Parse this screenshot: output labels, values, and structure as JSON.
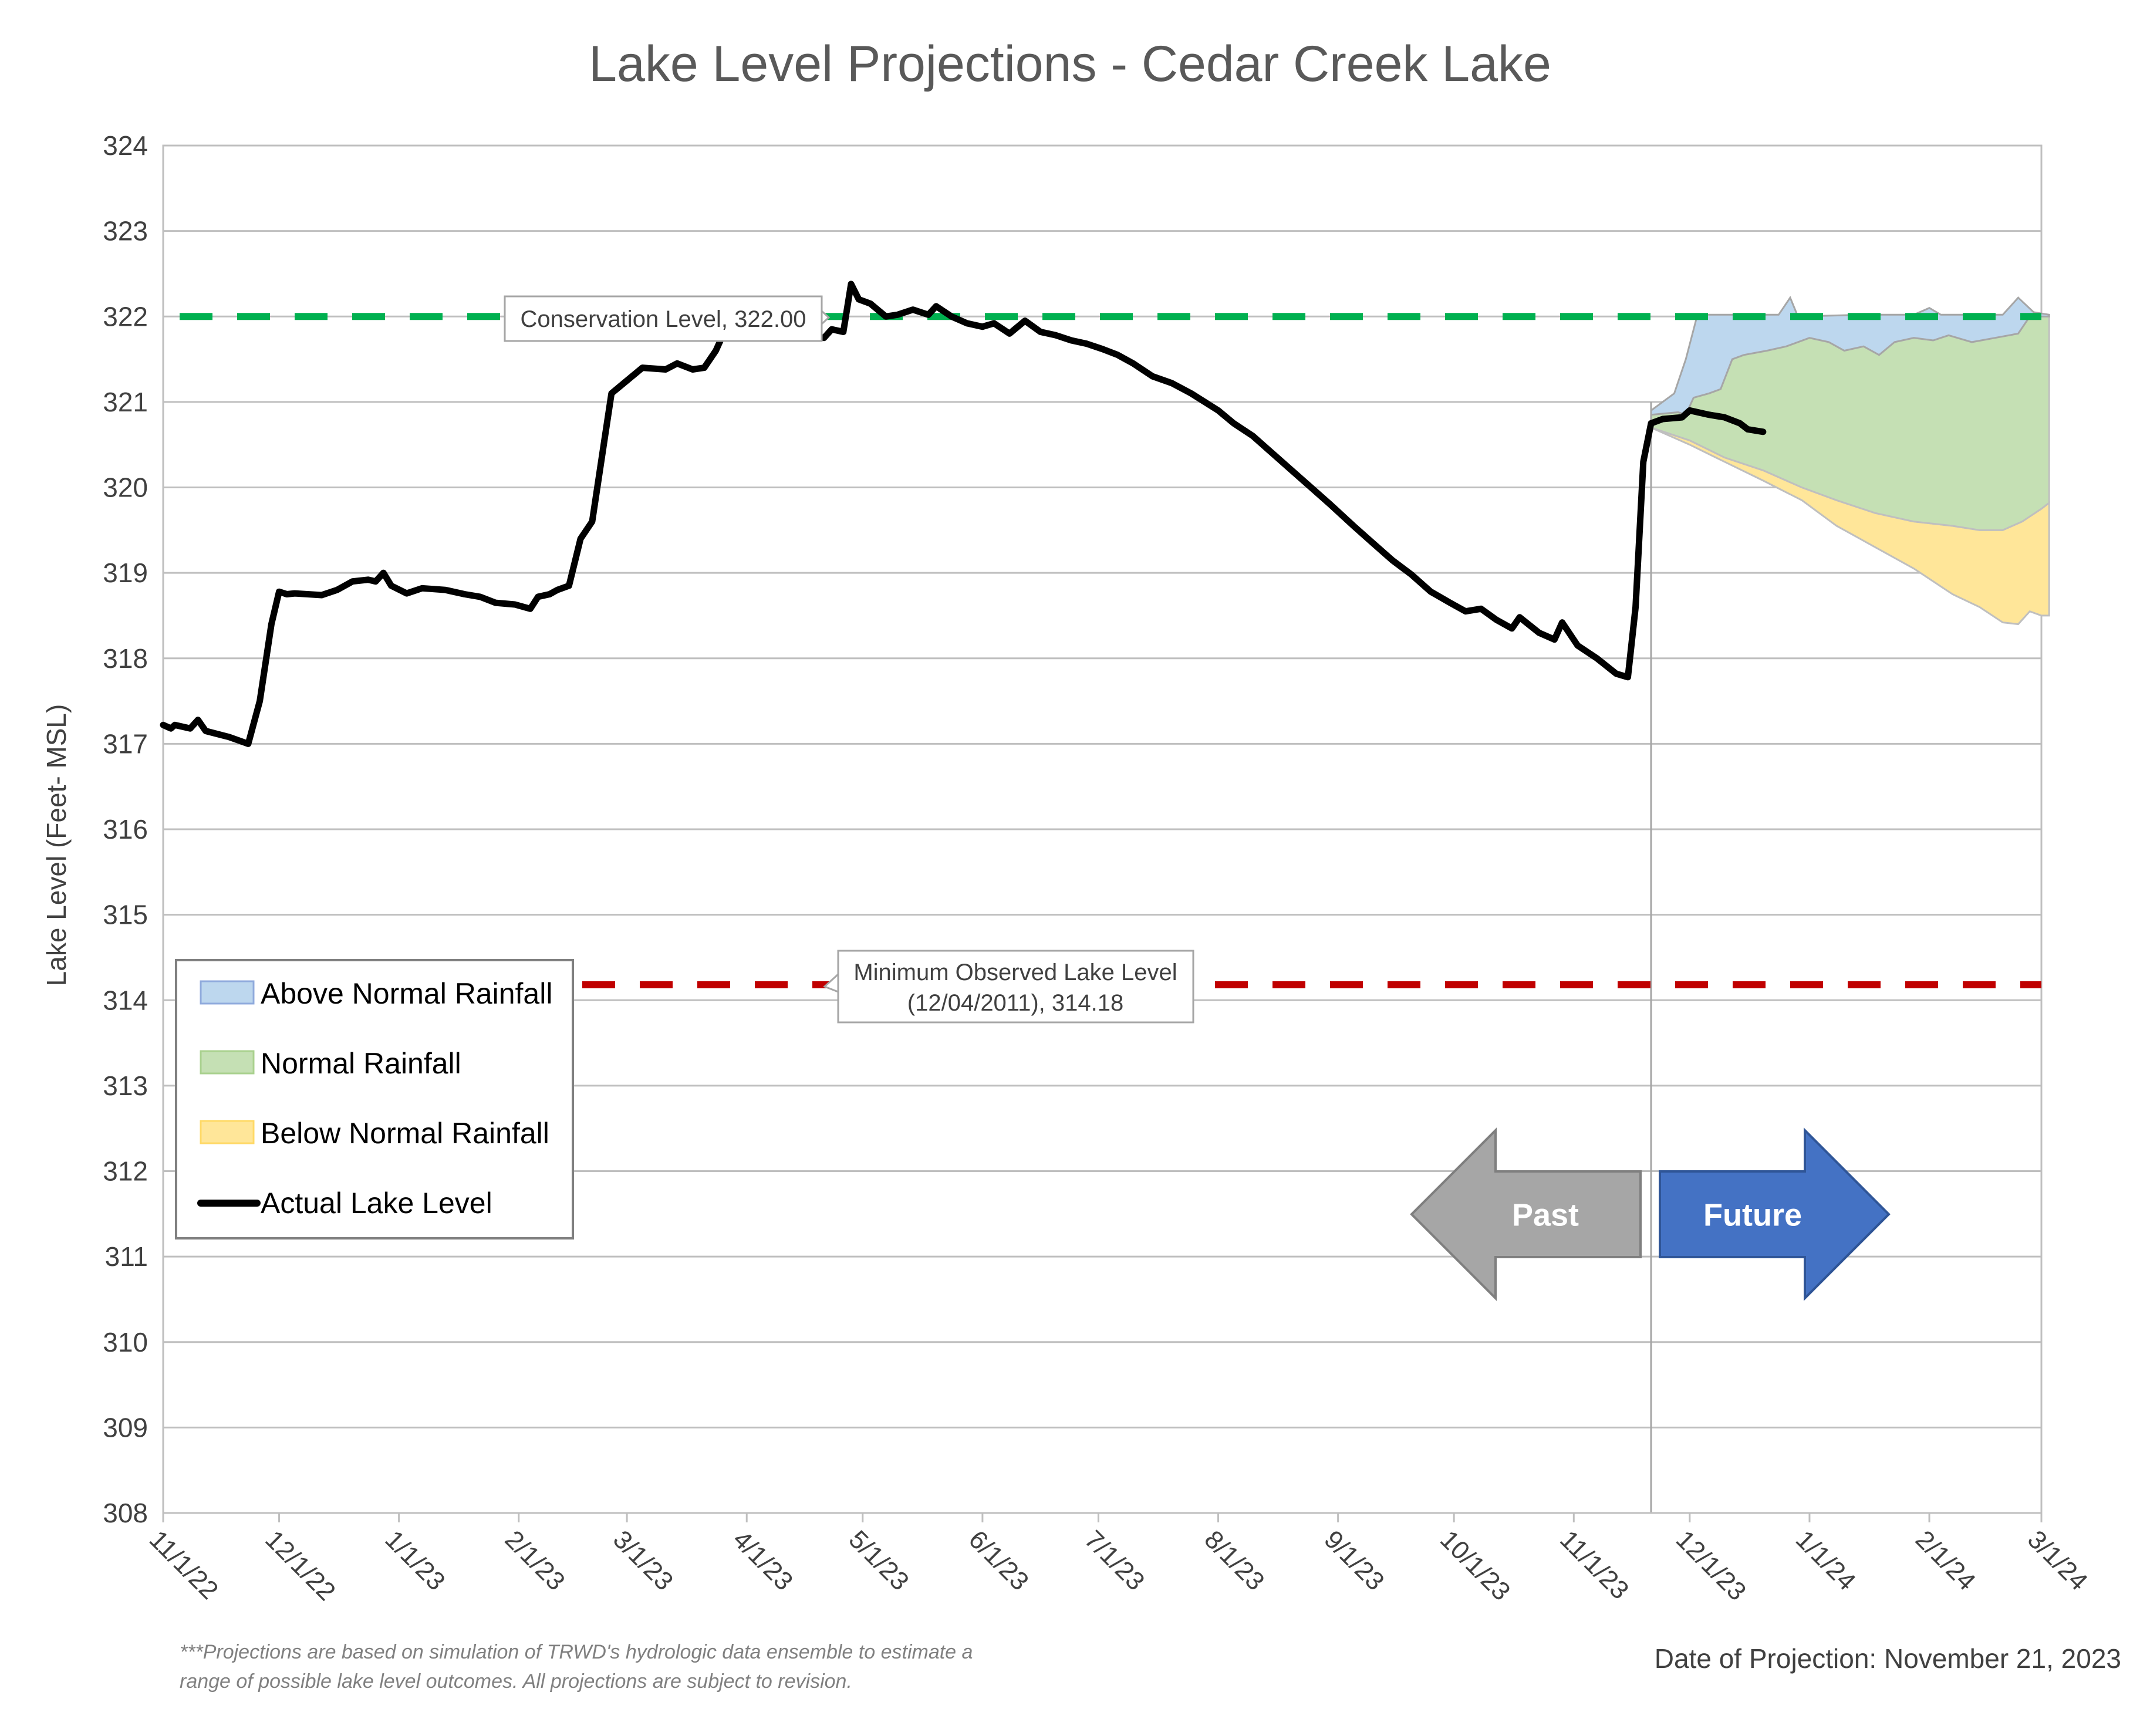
{
  "chart_data": {
    "type": "area",
    "title": "Lake Level Projections - Cedar Creek Lake",
    "ylabel": "Lake Level (Feet- MSL)",
    "xlabel": "",
    "ylim": [
      308,
      324
    ],
    "yticks": [
      308,
      309,
      310,
      311,
      312,
      313,
      314,
      315,
      316,
      317,
      318,
      319,
      320,
      321,
      322,
      323,
      324
    ],
    "xlim": [
      "2022-11-01",
      "2024-03-01"
    ],
    "xticks": [
      {
        "date": "2022-11-01",
        "label": "11/1/22"
      },
      {
        "date": "2022-12-01",
        "label": "12/1/22"
      },
      {
        "date": "2023-01-01",
        "label": "1/1/23"
      },
      {
        "date": "2023-02-01",
        "label": "2/1/23"
      },
      {
        "date": "2023-03-01",
        "label": "3/1/23"
      },
      {
        "date": "2023-04-01",
        "label": "4/1/23"
      },
      {
        "date": "2023-05-01",
        "label": "5/1/23"
      },
      {
        "date": "2023-06-01",
        "label": "6/1/23"
      },
      {
        "date": "2023-07-01",
        "label": "7/1/23"
      },
      {
        "date": "2023-08-01",
        "label": "8/1/23"
      },
      {
        "date": "2023-09-01",
        "label": "9/1/23"
      },
      {
        "date": "2023-10-01",
        "label": "10/1/23"
      },
      {
        "date": "2023-11-01",
        "label": "11/1/23"
      },
      {
        "date": "2023-12-01",
        "label": "12/1/23"
      },
      {
        "date": "2024-01-01",
        "label": "1/1/24"
      },
      {
        "date": "2024-02-01",
        "label": "2/1/24"
      },
      {
        "date": "2024-03-01",
        "label": "3/1/24"
      }
    ],
    "grid": true,
    "legend_position": "bottom-left",
    "series": [
      {
        "name": "Actual Lake Level",
        "color": "#000000",
        "points": [
          [
            "2022-11-01",
            317.22
          ],
          [
            "2022-11-03",
            317.18
          ],
          [
            "2022-11-04",
            317.22
          ],
          [
            "2022-11-08",
            317.18
          ],
          [
            "2022-11-10",
            317.28
          ],
          [
            "2022-11-12",
            317.15
          ],
          [
            "2022-11-18",
            317.08
          ],
          [
            "2022-11-23",
            317.0
          ],
          [
            "2022-11-26",
            317.5
          ],
          [
            "2022-11-29",
            318.4
          ],
          [
            "2022-12-01",
            318.78
          ],
          [
            "2022-12-03",
            318.75
          ],
          [
            "2022-12-05",
            318.76
          ],
          [
            "2022-12-12",
            318.74
          ],
          [
            "2022-12-16",
            318.8
          ],
          [
            "2022-12-20",
            318.9
          ],
          [
            "2022-12-24",
            318.92
          ],
          [
            "2022-12-26",
            318.9
          ],
          [
            "2022-12-28",
            319.0
          ],
          [
            "2022-12-30",
            318.85
          ],
          [
            "2023-01-03",
            318.76
          ],
          [
            "2023-01-07",
            318.82
          ],
          [
            "2023-01-13",
            318.8
          ],
          [
            "2023-01-18",
            318.75
          ],
          [
            "2023-01-22",
            318.72
          ],
          [
            "2023-01-26",
            318.65
          ],
          [
            "2023-01-31",
            318.63
          ],
          [
            "2023-02-04",
            318.58
          ],
          [
            "2023-02-06",
            318.72
          ],
          [
            "2023-02-09",
            318.75
          ],
          [
            "2023-02-11",
            318.8
          ],
          [
            "2023-02-14",
            318.85
          ],
          [
            "2023-02-17",
            319.4
          ],
          [
            "2023-02-20",
            319.6
          ],
          [
            "2023-02-23",
            320.5
          ],
          [
            "2023-02-25",
            321.1
          ],
          [
            "2023-03-01",
            321.25
          ],
          [
            "2023-03-05",
            321.4
          ],
          [
            "2023-03-11",
            321.38
          ],
          [
            "2023-03-14",
            321.45
          ],
          [
            "2023-03-18",
            321.38
          ],
          [
            "2023-03-21",
            321.4
          ],
          [
            "2023-03-24",
            321.6
          ],
          [
            "2023-03-26",
            321.8
          ]
        ],
        "points_resume": [
          [
            "2023-04-18",
            321.78
          ],
          [
            "2023-04-21",
            321.75
          ],
          [
            "2023-04-23",
            321.85
          ],
          [
            "2023-04-26",
            321.82
          ],
          [
            "2023-04-28",
            322.38
          ],
          [
            "2023-04-30",
            322.2
          ],
          [
            "2023-05-03",
            322.15
          ],
          [
            "2023-05-07",
            322.0
          ],
          [
            "2023-05-10",
            322.02
          ],
          [
            "2023-05-14",
            322.08
          ],
          [
            "2023-05-18",
            322.02
          ],
          [
            "2023-05-20",
            322.12
          ],
          [
            "2023-05-24",
            322.0
          ],
          [
            "2023-05-28",
            321.92
          ],
          [
            "2023-06-01",
            321.88
          ],
          [
            "2023-06-04",
            321.92
          ],
          [
            "2023-06-08",
            321.8
          ],
          [
            "2023-06-12",
            321.95
          ],
          [
            "2023-06-16",
            321.82
          ],
          [
            "2023-06-20",
            321.78
          ],
          [
            "2023-06-24",
            321.72
          ],
          [
            "2023-06-28",
            321.68
          ],
          [
            "2023-07-02",
            321.62
          ],
          [
            "2023-07-06",
            321.55
          ],
          [
            "2023-07-10",
            321.45
          ],
          [
            "2023-07-15",
            321.3
          ],
          [
            "2023-07-20",
            321.22
          ],
          [
            "2023-07-25",
            321.1
          ],
          [
            "2023-08-01",
            320.9
          ],
          [
            "2023-08-05",
            320.75
          ],
          [
            "2023-08-10",
            320.6
          ],
          [
            "2023-08-15",
            320.4
          ],
          [
            "2023-08-20",
            320.2
          ],
          [
            "2023-08-25",
            320.0
          ],
          [
            "2023-08-30",
            319.8
          ],
          [
            "2023-09-05",
            319.55
          ],
          [
            "2023-09-10",
            319.35
          ],
          [
            "2023-09-15",
            319.15
          ],
          [
            "2023-09-20",
            318.98
          ],
          [
            "2023-09-25",
            318.78
          ],
          [
            "2023-09-30",
            318.65
          ],
          [
            "2023-10-04",
            318.55
          ],
          [
            "2023-10-08",
            318.58
          ],
          [
            "2023-10-12",
            318.45
          ],
          [
            "2023-10-16",
            318.35
          ],
          [
            "2023-10-18",
            318.48
          ],
          [
            "2023-10-23",
            318.3
          ],
          [
            "2023-10-27",
            318.22
          ],
          [
            "2023-10-29",
            318.42
          ],
          [
            "2023-11-02",
            318.15
          ],
          [
            "2023-11-07",
            318.0
          ],
          [
            "2023-11-12",
            317.82
          ],
          [
            "2023-11-15",
            317.78
          ],
          [
            "2023-11-17",
            318.6
          ],
          [
            "2023-11-19",
            320.3
          ],
          [
            "2023-11-21",
            320.75
          ],
          [
            "2023-11-24",
            320.8
          ],
          [
            "2023-11-29",
            320.82
          ],
          [
            "2023-12-01",
            320.9
          ],
          [
            "2023-12-06",
            320.85
          ],
          [
            "2023-12-10",
            320.82
          ],
          [
            "2023-12-14",
            320.75
          ],
          [
            "2023-12-16",
            320.68
          ],
          [
            "2023-12-20",
            320.65
          ]
        ]
      },
      {
        "name": "Above Normal Rainfall",
        "color": "#BDD7EE",
        "upper": [
          [
            "2023-11-21",
            320.9
          ],
          [
            "2023-11-27",
            321.1
          ],
          [
            "2023-11-30",
            321.5
          ],
          [
            "2023-12-03",
            322.02
          ],
          [
            "2023-12-20",
            322.02
          ],
          [
            "2023-12-24",
            322.02
          ],
          [
            "2023-12-27",
            322.22
          ],
          [
            "2023-12-29",
            322.0
          ],
          [
            "2024-01-15",
            322.02
          ],
          [
            "2024-01-28",
            322.02
          ],
          [
            "2024-02-01",
            322.1
          ],
          [
            "2024-02-04",
            322.02
          ],
          [
            "2024-02-20",
            322.02
          ],
          [
            "2024-02-24",
            322.22
          ],
          [
            "2024-02-28",
            322.05
          ],
          [
            "2024-03-03",
            322.02
          ]
        ]
      },
      {
        "name": "Normal Rainfall",
        "color": "#C5E0B4",
        "upper": [
          [
            "2023-11-21",
            320.85
          ],
          [
            "2023-11-28",
            320.88
          ],
          [
            "2023-11-30",
            320.85
          ],
          [
            "2023-12-02",
            321.05
          ],
          [
            "2023-12-06",
            321.1
          ],
          [
            "2023-12-09",
            321.15
          ],
          [
            "2023-12-12",
            321.5
          ],
          [
            "2023-12-15",
            321.55
          ],
          [
            "2023-12-21",
            321.6
          ],
          [
            "2023-12-26",
            321.65
          ],
          [
            "2024-01-01",
            321.75
          ],
          [
            "2024-01-06",
            321.7
          ],
          [
            "2024-01-10",
            321.6
          ],
          [
            "2024-01-15",
            321.65
          ],
          [
            "2024-01-19",
            321.55
          ],
          [
            "2024-01-23",
            321.7
          ],
          [
            "2024-01-28",
            321.75
          ],
          [
            "2024-02-02",
            321.72
          ],
          [
            "2024-02-06",
            321.78
          ],
          [
            "2024-02-12",
            321.7
          ],
          [
            "2024-02-18",
            321.75
          ],
          [
            "2024-02-24",
            321.8
          ],
          [
            "2024-02-27",
            322.0
          ],
          [
            "2024-03-03",
            322.0
          ]
        ],
        "lower": [
          [
            "2023-11-21",
            320.7
          ],
          [
            "2023-12-01",
            320.55
          ],
          [
            "2023-12-10",
            320.35
          ],
          [
            "2023-12-20",
            320.2
          ],
          [
            "2023-12-30",
            320.0
          ],
          [
            "2024-01-08",
            319.85
          ],
          [
            "2024-01-18",
            319.7
          ],
          [
            "2024-01-28",
            319.6
          ],
          [
            "2024-02-07",
            319.55
          ],
          [
            "2024-02-14",
            319.5
          ],
          [
            "2024-02-20",
            319.5
          ],
          [
            "2024-02-25",
            319.6
          ],
          [
            "2024-03-01",
            319.75
          ],
          [
            "2024-03-03",
            319.82
          ]
        ]
      },
      {
        "name": "Below Normal Rainfall",
        "color": "#FFE699",
        "lower": [
          [
            "2023-11-21",
            320.7
          ],
          [
            "2023-12-01",
            320.5
          ],
          [
            "2023-12-10",
            320.3
          ],
          [
            "2023-12-20",
            320.08
          ],
          [
            "2023-12-30",
            319.85
          ],
          [
            "2024-01-08",
            319.55
          ],
          [
            "2024-01-18",
            319.3
          ],
          [
            "2024-01-28",
            319.05
          ],
          [
            "2024-02-07",
            318.75
          ],
          [
            "2024-02-14",
            318.6
          ],
          [
            "2024-02-20",
            318.42
          ],
          [
            "2024-02-24",
            318.4
          ],
          [
            "2024-02-27",
            318.55
          ],
          [
            "2024-03-01",
            318.5
          ],
          [
            "2024-03-03",
            318.5
          ]
        ]
      }
    ],
    "reference_lines": [
      {
        "name": "Conservation Level",
        "value": 322.0,
        "color": "#00B050",
        "label": "Conservation Level, 322.00"
      },
      {
        "name": "Minimum Observed Lake Level",
        "value": 314.18,
        "color": "#C00000",
        "label_line1": "Minimum Observed Lake Level",
        "label_line2": "(12/04/2011), 314.18"
      }
    ],
    "projection_date": "2023-11-21"
  },
  "legend": {
    "items": [
      {
        "label": "Above Normal Rainfall",
        "color": "#BDD7EE",
        "border": "#8FAADC",
        "kind": "box"
      },
      {
        "label": "Normal Rainfall",
        "color": "#C5E0B4",
        "border": "#A9D18E",
        "kind": "box"
      },
      {
        "label": "Below Normal Rainfall",
        "color": "#FFE699",
        "border": "#FFD966",
        "kind": "box"
      },
      {
        "label": "Actual Lake Level",
        "color": "#000000",
        "kind": "line"
      }
    ]
  },
  "arrows": {
    "past_label": "Past",
    "past_color": "#A6A6A6",
    "future_label": "Future",
    "future_color": "#4472C4"
  },
  "footer": {
    "note_line1": "***Projections are based on simulation of TRWD's hydrologic data ensemble to estimate a",
    "note_line2": "range of possible lake level outcomes.  All projections are subject to revision.",
    "date": "Date of Projection: November 21, 2023"
  }
}
